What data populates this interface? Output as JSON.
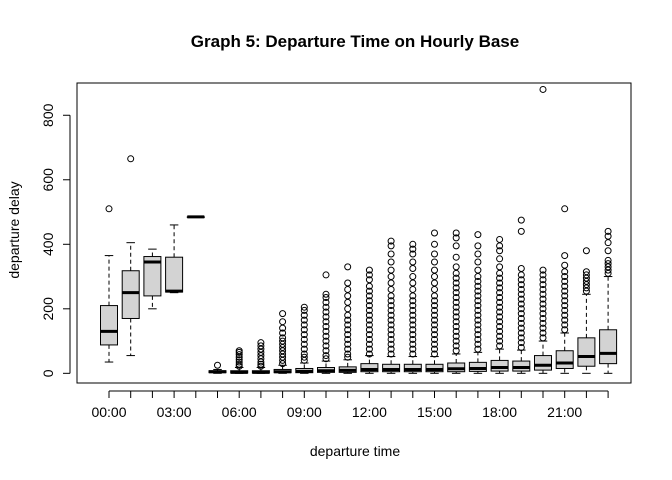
{
  "chart_data": {
    "type": "boxplot",
    "title": "Graph 5: Departure Time on Hourly Base",
    "xlabel": "departure time",
    "ylabel": "departure delay",
    "ylim": [
      -30,
      900
    ],
    "y_ticks": [
      0,
      200,
      400,
      600,
      800
    ],
    "x_ticks": [
      {
        "hour": 0,
        "label": "00:00"
      },
      {
        "hour": 3,
        "label": "03:00"
      },
      {
        "hour": 6,
        "label": "06:00"
      },
      {
        "hour": 9,
        "label": "09:00"
      },
      {
        "hour": 12,
        "label": "12:00"
      },
      {
        "hour": 15,
        "label": "15:00"
      },
      {
        "hour": 18,
        "label": "18:00"
      },
      {
        "hour": 21,
        "label": "21:00"
      }
    ],
    "grid": false,
    "box_fill": "#d3d3d3",
    "boxes": [
      {
        "hour": 0,
        "min": 35,
        "q1": 88,
        "median": 130,
        "q3": 210,
        "max": 365,
        "outliers": [
          510
        ]
      },
      {
        "hour": 1,
        "min": 55,
        "q1": 170,
        "median": 250,
        "q3": 318,
        "max": 405,
        "outliers": [
          665
        ]
      },
      {
        "hour": 2,
        "min": 200,
        "q1": 240,
        "median": 345,
        "q3": 362,
        "max": 385,
        "outliers": []
      },
      {
        "hour": 3,
        "min": 250,
        "q1": 252,
        "median": 255,
        "q3": 360,
        "max": 460,
        "outliers": []
      },
      {
        "hour": 4,
        "min": 485,
        "q1": 485,
        "median": 485,
        "q3": 485,
        "max": 485,
        "outliers": []
      },
      {
        "hour": 5,
        "min": 0,
        "q1": 2,
        "median": 5,
        "q3": 8,
        "max": 12,
        "outliers": [
          25
        ]
      },
      {
        "hour": 6,
        "min": 0,
        "q1": 1,
        "median": 3,
        "q3": 8,
        "max": 18,
        "outliers": [
          22,
          28,
          35,
          42,
          50,
          58,
          65,
          70
        ]
      },
      {
        "hour": 7,
        "min": 0,
        "q1": 1,
        "median": 3,
        "q3": 8,
        "max": 18,
        "outliers": [
          22,
          28,
          35,
          45,
          55,
          65,
          75,
          85,
          95
        ]
      },
      {
        "hour": 8,
        "min": 0,
        "q1": 2,
        "median": 5,
        "q3": 12,
        "max": 25,
        "outliers": [
          30,
          40,
          50,
          60,
          70,
          80,
          90,
          100,
          110,
          125,
          140,
          160,
          185
        ]
      },
      {
        "hour": 9,
        "min": 0,
        "q1": 2,
        "median": 6,
        "q3": 15,
        "max": 32,
        "outliers": [
          40,
          50,
          60,
          75,
          90,
          105,
          120,
          135,
          150,
          165,
          180,
          195,
          205
        ]
      },
      {
        "hour": 10,
        "min": 0,
        "q1": 3,
        "median": 8,
        "q3": 18,
        "max": 38,
        "outliers": [
          45,
          55,
          70,
          85,
          100,
          115,
          130,
          145,
          160,
          175,
          190,
          205,
          220,
          235,
          245,
          305
        ]
      },
      {
        "hour": 11,
        "min": 0,
        "q1": 3,
        "median": 9,
        "q3": 20,
        "max": 42,
        "outliers": [
          50,
          60,
          75,
          90,
          105,
          120,
          135,
          150,
          165,
          180,
          200,
          220,
          240,
          260,
          280,
          330
        ]
      },
      {
        "hour": 12,
        "min": 0,
        "q1": 5,
        "median": 12,
        "q3": 30,
        "max": 55,
        "outliers": [
          60,
          75,
          90,
          105,
          120,
          135,
          150,
          165,
          180,
          195,
          210,
          225,
          240,
          255,
          270,
          290,
          305,
          320
        ]
      },
      {
        "hour": 13,
        "min": 0,
        "q1": 5,
        "median": 12,
        "q3": 28,
        "max": 52,
        "outliers": [
          60,
          75,
          90,
          105,
          120,
          135,
          150,
          165,
          180,
          195,
          210,
          225,
          240,
          260,
          280,
          300,
          320,
          345,
          370,
          395,
          410
        ]
      },
      {
        "hour": 14,
        "min": 0,
        "q1": 5,
        "median": 12,
        "q3": 28,
        "max": 52,
        "outliers": [
          60,
          75,
          90,
          105,
          120,
          135,
          150,
          165,
          180,
          195,
          210,
          225,
          240,
          260,
          280,
          300,
          325,
          345,
          370,
          385,
          400
        ]
      },
      {
        "hour": 15,
        "min": 0,
        "q1": 5,
        "median": 12,
        "q3": 28,
        "max": 52,
        "outliers": [
          60,
          75,
          90,
          105,
          120,
          135,
          150,
          165,
          180,
          195,
          210,
          225,
          240,
          260,
          280,
          300,
          320,
          345,
          370,
          400,
          435
        ]
      },
      {
        "hour": 16,
        "min": 0,
        "q1": 5,
        "median": 14,
        "q3": 32,
        "max": 60,
        "outliers": [
          70,
          85,
          100,
          115,
          130,
          145,
          160,
          175,
          190,
          205,
          220,
          235,
          250,
          265,
          280,
          295,
          310,
          330,
          360,
          395,
          420,
          435
        ]
      },
      {
        "hour": 17,
        "min": 0,
        "q1": 6,
        "median": 15,
        "q3": 34,
        "max": 65,
        "outliers": [
          75,
          90,
          105,
          120,
          135,
          150,
          165,
          180,
          195,
          210,
          225,
          240,
          255,
          270,
          285,
          300,
          320,
          345,
          370,
          395,
          430
        ]
      },
      {
        "hour": 18,
        "min": 0,
        "q1": 7,
        "median": 18,
        "q3": 40,
        "max": 75,
        "outliers": [
          85,
          100,
          115,
          130,
          145,
          160,
          175,
          190,
          205,
          220,
          235,
          250,
          265,
          280,
          295,
          310,
          330,
          355,
          380,
          395,
          415
        ]
      },
      {
        "hour": 19,
        "min": 0,
        "q1": 7,
        "median": 18,
        "q3": 38,
        "max": 72,
        "outliers": [
          80,
          95,
          110,
          125,
          140,
          155,
          170,
          185,
          200,
          215,
          230,
          245,
          260,
          275,
          290,
          305,
          325,
          440,
          475
        ]
      },
      {
        "hour": 20,
        "min": 0,
        "q1": 10,
        "median": 25,
        "q3": 55,
        "max": 100,
        "outliers": [
          110,
          125,
          140,
          155,
          170,
          185,
          200,
          215,
          230,
          245,
          260,
          275,
          290,
          305,
          320,
          880
        ]
      },
      {
        "hour": 21,
        "min": 0,
        "q1": 15,
        "median": 32,
        "q3": 70,
        "max": 125,
        "outliers": [
          135,
          150,
          165,
          180,
          195,
          210,
          225,
          240,
          255,
          270,
          285,
          300,
          315,
          335,
          365,
          510
        ]
      },
      {
        "hour": 22,
        "min": 0,
        "q1": 22,
        "median": 52,
        "q3": 110,
        "max": 245,
        "outliers": [
          255,
          265,
          275,
          285,
          295,
          305,
          315,
          380
        ]
      },
      {
        "hour": 23,
        "min": 0,
        "q1": 30,
        "median": 62,
        "q3": 135,
        "max": 300,
        "outliers": [
          310,
          320,
          330,
          340,
          350,
          380,
          405,
          425,
          440
        ]
      }
    ]
  }
}
